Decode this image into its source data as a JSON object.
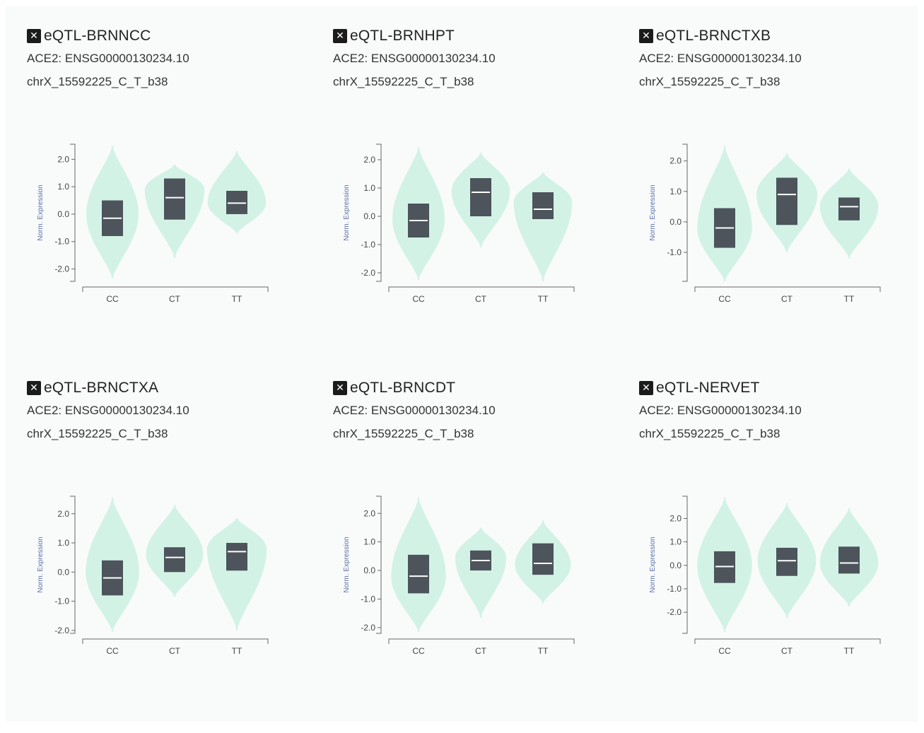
{
  "page": {
    "background": "#f9fbfb",
    "violin_color": "#d3f2e6",
    "box_color": "#4d545b",
    "median_color": "#ffffff"
  },
  "panels": [
    {
      "title": "eQTL-BRNNCC",
      "close_icon": "close-icon",
      "gene": "ACE2: ENSG00000130234.10",
      "variant": "chrX_15592225_C_T_b38"
    },
    {
      "title": "eQTL-BRNHPT",
      "close_icon": "close-icon",
      "gene": "ACE2: ENSG00000130234.10",
      "variant": "chrX_15592225_C_T_b38"
    },
    {
      "title": "eQTL-BRNCTXB",
      "close_icon": "close-icon",
      "gene": "ACE2: ENSG00000130234.10",
      "variant": "chrX_15592225_C_T_b38"
    },
    {
      "title": "eQTL-BRNCTXA",
      "close_icon": "close-icon",
      "gene": "ACE2: ENSG00000130234.10",
      "variant": "chrX_15592225_C_T_b38"
    },
    {
      "title": "eQTL-BRNCDT",
      "close_icon": "close-icon",
      "gene": "ACE2: ENSG00000130234.10",
      "variant": "chrX_15592225_C_T_b38"
    },
    {
      "title": "eQTL-NERVET",
      "close_icon": "close-icon",
      "gene": "ACE2: ENSG00000130234.10",
      "variant": "chrX_15592225_C_T_b38"
    }
  ],
  "chart_data": [
    {
      "type": "violin",
      "ylabel": "Norm. Expression",
      "ylim": [
        -2.45,
        2.55
      ],
      "yticks": [
        2.0,
        1.0,
        0.0,
        -1.0,
        -2.0
      ],
      "categories": [
        "CC",
        "CT",
        "TT"
      ],
      "groups": [
        {
          "name": "CC",
          "min": -2.35,
          "max": 2.5,
          "mode": 0.0,
          "width": 0.42,
          "q1": -0.8,
          "median": -0.15,
          "q3": 0.5
        },
        {
          "name": "CT",
          "min": -1.6,
          "max": 1.8,
          "mode": 0.9,
          "width": 0.48,
          "q1": -0.2,
          "median": 0.6,
          "q3": 1.3
        },
        {
          "name": "TT",
          "min": -0.7,
          "max": 2.3,
          "mode": 0.4,
          "width": 0.47,
          "q1": 0.0,
          "median": 0.4,
          "q3": 0.85
        }
      ]
    },
    {
      "type": "violin",
      "ylabel": "Norm. Expression",
      "ylim": [
        -2.3,
        2.55
      ],
      "yticks": [
        2.0,
        1.0,
        0.0,
        -1.0,
        -2.0
      ],
      "categories": [
        "CC",
        "CT",
        "TT"
      ],
      "groups": [
        {
          "name": "CC",
          "min": -2.25,
          "max": 2.45,
          "mode": -0.1,
          "width": 0.42,
          "q1": -0.75,
          "median": -0.15,
          "q3": 0.45
        },
        {
          "name": "CT",
          "min": -1.1,
          "max": 2.25,
          "mode": 0.9,
          "width": 0.47,
          "q1": 0.0,
          "median": 0.85,
          "q3": 1.35
        },
        {
          "name": "TT",
          "min": -2.3,
          "max": 1.55,
          "mode": 0.5,
          "width": 0.47,
          "q1": -0.1,
          "median": 0.25,
          "q3": 0.85
        }
      ]
    },
    {
      "type": "violin",
      "ylabel": "Norm. Expression",
      "ylim": [
        -1.95,
        2.55
      ],
      "yticks": [
        2.0,
        1.0,
        0.0,
        -1.0
      ],
      "categories": [
        "CC",
        "CT",
        "TT"
      ],
      "groups": [
        {
          "name": "CC",
          "min": -1.95,
          "max": 2.5,
          "mode": -0.2,
          "width": 0.44,
          "q1": -0.85,
          "median": -0.2,
          "q3": 0.45
        },
        {
          "name": "CT",
          "min": -1.0,
          "max": 2.25,
          "mode": 0.9,
          "width": 0.49,
          "q1": -0.1,
          "median": 0.9,
          "q3": 1.45
        },
        {
          "name": "TT",
          "min": -1.2,
          "max": 1.75,
          "mode": 0.5,
          "width": 0.47,
          "q1": 0.05,
          "median": 0.5,
          "q3": 0.8
        }
      ]
    },
    {
      "type": "violin",
      "ylabel": "Norm. Expression",
      "ylim": [
        -2.1,
        2.6
      ],
      "yticks": [
        2.0,
        1.0,
        0.0,
        -1.0,
        -2.0
      ],
      "categories": [
        "CC",
        "CT",
        "TT"
      ],
      "groups": [
        {
          "name": "CC",
          "min": -2.05,
          "max": 2.55,
          "mode": 0.0,
          "width": 0.43,
          "q1": -0.8,
          "median": -0.2,
          "q3": 0.4
        },
        {
          "name": "CT",
          "min": -0.85,
          "max": 2.3,
          "mode": 0.6,
          "width": 0.46,
          "q1": 0.0,
          "median": 0.5,
          "q3": 0.85
        },
        {
          "name": "TT",
          "min": -2.0,
          "max": 1.85,
          "mode": 0.8,
          "width": 0.48,
          "q1": 0.05,
          "median": 0.7,
          "q3": 1.0
        }
      ]
    },
    {
      "type": "violin",
      "ylabel": "Norm. Expression",
      "ylim": [
        -2.2,
        2.6
      ],
      "yticks": [
        2.0,
        1.0,
        0.0,
        -1.0,
        -2.0
      ],
      "categories": [
        "CC",
        "CT",
        "TT"
      ],
      "groups": [
        {
          "name": "CC",
          "min": -2.15,
          "max": 2.55,
          "mode": -0.2,
          "width": 0.44,
          "q1": -0.8,
          "median": -0.2,
          "q3": 0.55
        },
        {
          "name": "CT",
          "min": -1.65,
          "max": 1.5,
          "mode": 0.45,
          "width": 0.41,
          "q1": 0.0,
          "median": 0.35,
          "q3": 0.7
        },
        {
          "name": "TT",
          "min": -1.15,
          "max": 1.75,
          "mode": 0.2,
          "width": 0.45,
          "q1": -0.15,
          "median": 0.25,
          "q3": 0.95
        }
      ]
    },
    {
      "type": "violin",
      "ylabel": "Norm. Expression",
      "ylim": [
        -2.9,
        2.95
      ],
      "yticks": [
        2.0,
        1.0,
        0.0,
        -1.0,
        -2.0
      ],
      "categories": [
        "CC",
        "CT",
        "TT"
      ],
      "groups": [
        {
          "name": "CC",
          "min": -2.85,
          "max": 2.9,
          "mode": 0.0,
          "width": 0.44,
          "q1": -0.75,
          "median": -0.05,
          "q3": 0.6
        },
        {
          "name": "CT",
          "min": -2.25,
          "max": 2.65,
          "mode": 0.2,
          "width": 0.47,
          "q1": -0.45,
          "median": 0.2,
          "q3": 0.75
        },
        {
          "name": "TT",
          "min": -1.75,
          "max": 2.45,
          "mode": 0.1,
          "width": 0.47,
          "q1": -0.35,
          "median": 0.1,
          "q3": 0.8
        }
      ]
    }
  ]
}
